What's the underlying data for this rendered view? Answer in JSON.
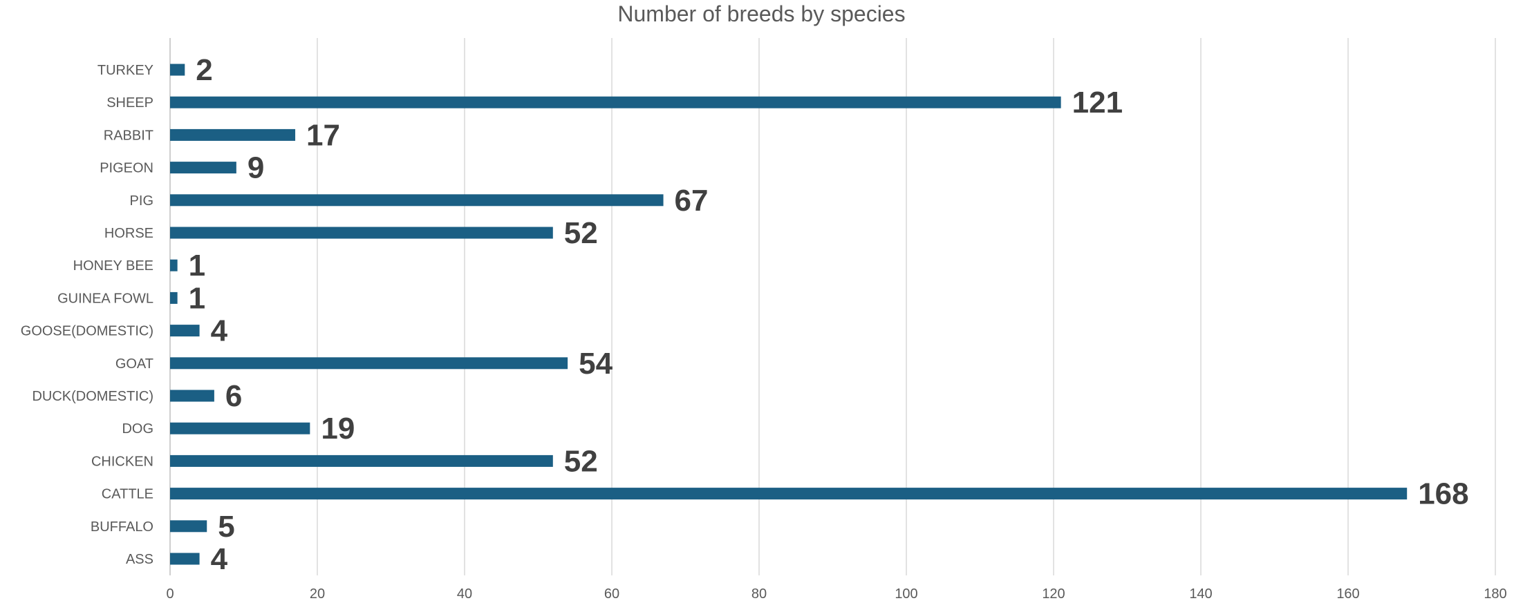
{
  "chart_data": {
    "type": "bar",
    "orientation": "horizontal",
    "title": "Number of breeds by species",
    "xlabel": "",
    "ylabel": "",
    "categories": [
      "TURKEY",
      "SHEEP",
      "RABBIT",
      "PIGEON",
      "PIG",
      "HORSE",
      "HONEY BEE",
      "GUINEA FOWL",
      "GOOSE(DOMESTIC)",
      "GOAT",
      "DUCK(DOMESTIC)",
      "DOG",
      "CHICKEN",
      "CATTLE",
      "BUFFALO",
      "ASS"
    ],
    "values": [
      2,
      121,
      17,
      9,
      67,
      52,
      1,
      1,
      4,
      54,
      6,
      19,
      52,
      168,
      5,
      4
    ],
    "data_labels": [
      "2",
      "121",
      "17",
      "9",
      "67",
      "52",
      "1",
      "1",
      "4",
      "54",
      "6",
      "19",
      "52",
      "168",
      "5",
      "4"
    ],
    "xlim": [
      0,
      180
    ],
    "x_ticks": [
      0,
      20,
      40,
      60,
      80,
      100,
      120,
      140,
      160,
      180
    ],
    "x_tick_labels": [
      "0",
      "20",
      "40",
      "60",
      "80",
      "100",
      "120",
      "140",
      "160",
      "180"
    ],
    "grid": "vertical",
    "legend": "none",
    "colors": {
      "bar": "#1b5f84"
    }
  }
}
